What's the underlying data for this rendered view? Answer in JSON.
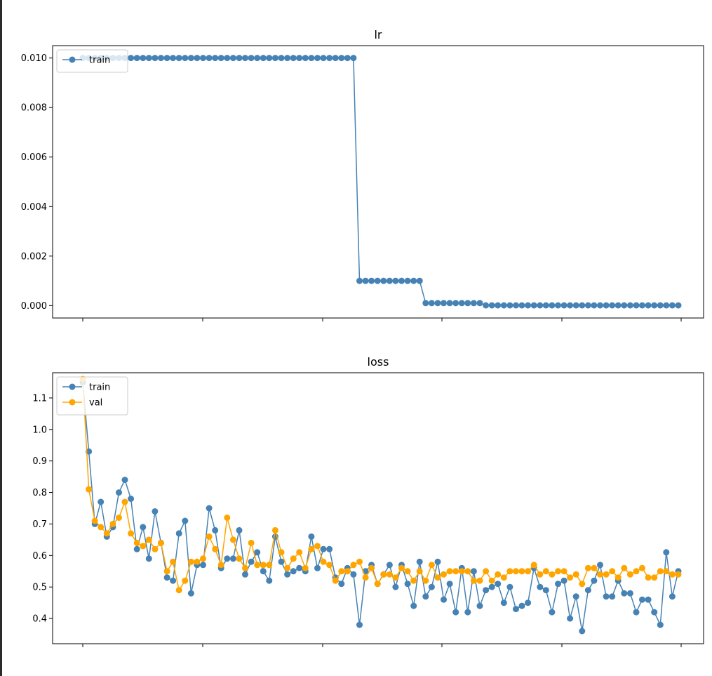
{
  "colors": {
    "train": "#4682b4",
    "val": "#ffa500",
    "axes": "#000000",
    "background": "#ffffff"
  },
  "chart_data": [
    {
      "type": "line",
      "title": "lr",
      "xlabel": "",
      "ylabel": "",
      "ylim": [
        -0.0005,
        0.0105
      ],
      "yticks": [
        "0.000",
        "0.002",
        "0.004",
        "0.006",
        "0.008",
        "0.010"
      ],
      "grid": false,
      "legend_position": "upper-left",
      "x": [
        1,
        2,
        3,
        4,
        5,
        6,
        7,
        8,
        9,
        10,
        11,
        12,
        13,
        14,
        15,
        16,
        17,
        18,
        19,
        20,
        21,
        22,
        23,
        24,
        25,
        26,
        27,
        28,
        29,
        30,
        31,
        32,
        33,
        34,
        35,
        36,
        37,
        38,
        39,
        40,
        41,
        42,
        43,
        44,
        45,
        46,
        47,
        48,
        49,
        50,
        51,
        52,
        53,
        54,
        55,
        56,
        57,
        58,
        59,
        60,
        61,
        62,
        63,
        64,
        65,
        66,
        67,
        68,
        69,
        70,
        71,
        72,
        73,
        74,
        75,
        76,
        77,
        78,
        79,
        80,
        81,
        82,
        83,
        84,
        85,
        86,
        87,
        88,
        89,
        90,
        91,
        92,
        93,
        94,
        95,
        96,
        97,
        98,
        99,
        100
      ],
      "series": [
        {
          "name": "train",
          "color": "#4682b4",
          "values": [
            0.01,
            0.01,
            0.01,
            0.01,
            0.01,
            0.01,
            0.01,
            0.01,
            0.01,
            0.01,
            0.01,
            0.01,
            0.01,
            0.01,
            0.01,
            0.01,
            0.01,
            0.01,
            0.01,
            0.01,
            0.01,
            0.01,
            0.01,
            0.01,
            0.01,
            0.01,
            0.01,
            0.01,
            0.01,
            0.01,
            0.01,
            0.01,
            0.01,
            0.01,
            0.01,
            0.01,
            0.01,
            0.01,
            0.01,
            0.01,
            0.01,
            0.01,
            0.01,
            0.01,
            0.01,
            0.01,
            0.001,
            0.001,
            0.001,
            0.001,
            0.001,
            0.001,
            0.001,
            0.001,
            0.001,
            0.001,
            0.001,
            0.0001,
            0.0001,
            0.0001,
            0.0001,
            0.0001,
            0.0001,
            0.0001,
            0.0001,
            0.0001,
            0.0001,
            1e-05,
            1e-05,
            1e-05,
            1e-05,
            1e-05,
            1e-05,
            1e-05,
            1e-05,
            1e-05,
            1e-05,
            1e-05,
            1e-05,
            1e-05,
            1e-05,
            1e-05,
            1e-05,
            1e-05,
            1e-05,
            1e-05,
            1e-05,
            1e-05,
            1e-05,
            1e-05,
            1e-05,
            1e-05,
            1e-05,
            1e-05,
            1e-05,
            1e-05,
            1e-05,
            1e-05,
            1e-05,
            1e-05
          ]
        }
      ]
    },
    {
      "type": "line",
      "title": "loss",
      "xlabel": "",
      "ylabel": "",
      "ylim": [
        0.32,
        1.18
      ],
      "yticks": [
        "0.4",
        "0.5",
        "0.6",
        "0.7",
        "0.8",
        "0.9",
        "1.0",
        "1.1"
      ],
      "grid": false,
      "legend_position": "upper-left",
      "x": [
        1,
        2,
        3,
        4,
        5,
        6,
        7,
        8,
        9,
        10,
        11,
        12,
        13,
        14,
        15,
        16,
        17,
        18,
        19,
        20,
        21,
        22,
        23,
        24,
        25,
        26,
        27,
        28,
        29,
        30,
        31,
        32,
        33,
        34,
        35,
        36,
        37,
        38,
        39,
        40,
        41,
        42,
        43,
        44,
        45,
        46,
        47,
        48,
        49,
        50,
        51,
        52,
        53,
        54,
        55,
        56,
        57,
        58,
        59,
        60,
        61,
        62,
        63,
        64,
        65,
        66,
        67,
        68,
        69,
        70,
        71,
        72,
        73,
        74,
        75,
        76,
        77,
        78,
        79,
        80,
        81,
        82,
        83,
        84,
        85,
        86,
        87,
        88,
        89,
        90,
        91,
        92,
        93,
        94,
        95,
        96,
        97,
        98,
        99,
        100
      ],
      "series": [
        {
          "name": "train",
          "color": "#4682b4",
          "values": [
            1.15,
            0.93,
            0.7,
            0.77,
            0.66,
            0.69,
            0.8,
            0.84,
            0.78,
            0.62,
            0.69,
            0.59,
            0.74,
            0.64,
            0.53,
            0.52,
            0.67,
            0.71,
            0.48,
            0.57,
            0.57,
            0.75,
            0.68,
            0.56,
            0.59,
            0.59,
            0.68,
            0.54,
            0.58,
            0.61,
            0.55,
            0.52,
            0.66,
            0.58,
            0.54,
            0.55,
            0.56,
            0.55,
            0.66,
            0.56,
            0.62,
            0.62,
            0.53,
            0.51,
            0.56,
            0.54,
            0.38,
            0.55,
            0.57,
            0.51,
            0.54,
            0.57,
            0.5,
            0.57,
            0.51,
            0.44,
            0.58,
            0.47,
            0.5,
            0.58,
            0.46,
            0.51,
            0.42,
            0.56,
            0.42,
            0.55,
            0.44,
            0.49,
            0.5,
            0.51,
            0.45,
            0.5,
            0.43,
            0.44,
            0.45,
            0.56,
            0.5,
            0.49,
            0.42,
            0.51,
            0.52,
            0.4,
            0.47,
            0.36,
            0.49,
            0.52,
            0.57,
            0.47,
            0.47,
            0.52,
            0.48,
            0.48,
            0.42,
            0.46,
            0.46,
            0.42,
            0.38,
            0.61,
            0.47,
            0.55
          ]
        },
        {
          "name": "val",
          "color": "#ffa500",
          "values": [
            1.16,
            0.81,
            0.71,
            0.69,
            0.67,
            0.7,
            0.72,
            0.77,
            0.67,
            0.64,
            0.63,
            0.65,
            0.62,
            0.64,
            0.55,
            0.58,
            0.49,
            0.52,
            0.58,
            0.58,
            0.59,
            0.66,
            0.62,
            0.57,
            0.72,
            0.65,
            0.59,
            0.56,
            0.64,
            0.57,
            0.57,
            0.57,
            0.68,
            0.61,
            0.56,
            0.59,
            0.61,
            0.56,
            0.62,
            0.63,
            0.58,
            0.57,
            0.52,
            0.55,
            0.55,
            0.57,
            0.58,
            0.53,
            0.56,
            0.51,
            0.54,
            0.54,
            0.53,
            0.56,
            0.55,
            0.52,
            0.55,
            0.52,
            0.57,
            0.53,
            0.54,
            0.55,
            0.55,
            0.55,
            0.55,
            0.52,
            0.52,
            0.55,
            0.52,
            0.54,
            0.53,
            0.55,
            0.55,
            0.55,
            0.55,
            0.57,
            0.54,
            0.55,
            0.54,
            0.55,
            0.55,
            0.53,
            0.54,
            0.51,
            0.56,
            0.56,
            0.54,
            0.54,
            0.55,
            0.53,
            0.56,
            0.54,
            0.55,
            0.56,
            0.53,
            0.53,
            0.55,
            0.55,
            0.54,
            0.54
          ]
        }
      ]
    }
  ]
}
